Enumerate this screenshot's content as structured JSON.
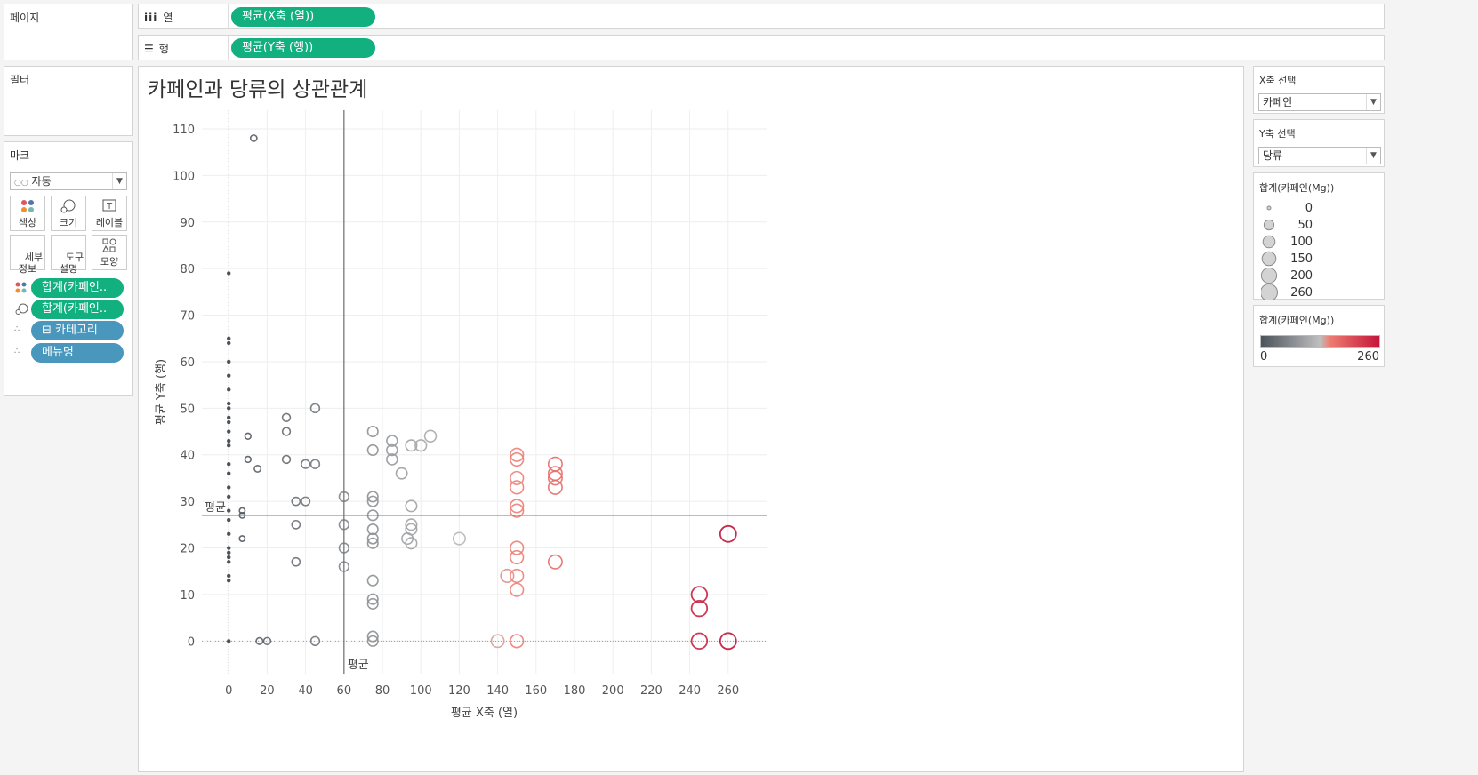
{
  "shelves": {
    "pages_title": "페이지",
    "columns_label": "열",
    "rows_label": "행",
    "columns_pill": "평균(X축 (열))",
    "rows_pill": "평균(Y축 (행))"
  },
  "filters_title": "필터",
  "marks": {
    "title": "마크",
    "type_value": "자동",
    "buttons": [
      "색상",
      "크기",
      "레이블",
      "세부\n정보",
      "도구\n설명",
      "모양"
    ],
    "fields": [
      {
        "label": "합계(카페인..",
        "kind": "color",
        "style": "green"
      },
      {
        "label": "합계(카페인..",
        "kind": "size",
        "style": "green"
      },
      {
        "label": "⊟ 카테고리",
        "kind": "detail",
        "style": "blue"
      },
      {
        "label": "메뉴명",
        "kind": "detail",
        "style": "blue"
      }
    ]
  },
  "params": {
    "x_title": "X축 선택",
    "x_value": "카페인",
    "y_title": "Y축 선택",
    "y_value": "당류"
  },
  "size_legend": {
    "title": "합계(카페인(Mg))",
    "items": [
      "0",
      "50",
      "100",
      "150",
      "200",
      "260"
    ]
  },
  "color_legend": {
    "title": "합계(카페인(Mg))",
    "min": "0",
    "max": "260",
    "colors": [
      "#4b525a",
      "#bfbfbf",
      "#ee7d72",
      "#c3143a"
    ]
  },
  "chart_data": {
    "type": "scatter",
    "title": "카페인과 당류의 상관관계",
    "xlabel": "평균 X축 (열)",
    "ylabel": "평균 Y축 (행)",
    "xlim": [
      -14,
      280
    ],
    "ylim": [
      -7,
      114
    ],
    "xticks": [
      0,
      20,
      40,
      60,
      80,
      100,
      120,
      140,
      160,
      180,
      200,
      220,
      240,
      260
    ],
    "yticks": [
      0,
      10,
      20,
      30,
      40,
      50,
      60,
      70,
      80,
      90,
      100,
      110
    ],
    "ref_lines": {
      "x_avg": 60,
      "y_avg": 27,
      "label": "평균"
    },
    "points": [
      [
        0,
        0
      ],
      [
        0,
        13
      ],
      [
        0,
        14
      ],
      [
        0,
        17
      ],
      [
        0,
        18
      ],
      [
        0,
        19
      ],
      [
        0,
        20
      ],
      [
        0,
        23
      ],
      [
        0,
        26
      ],
      [
        0,
        28
      ],
      [
        0,
        31
      ],
      [
        0,
        33
      ],
      [
        0,
        36
      ],
      [
        0,
        38
      ],
      [
        0,
        42
      ],
      [
        0,
        43
      ],
      [
        0,
        45
      ],
      [
        0,
        47
      ],
      [
        0,
        48
      ],
      [
        0,
        50
      ],
      [
        0,
        51
      ],
      [
        0,
        54
      ],
      [
        0,
        57
      ],
      [
        0,
        60
      ],
      [
        0,
        64
      ],
      [
        0,
        65
      ],
      [
        0,
        79
      ],
      [
        7,
        22
      ],
      [
        7,
        27
      ],
      [
        7,
        28
      ],
      [
        10,
        39
      ],
      [
        10,
        44
      ],
      [
        13,
        108
      ],
      [
        15,
        37
      ],
      [
        16,
        0
      ],
      [
        20,
        0
      ],
      [
        30,
        39
      ],
      [
        30,
        45
      ],
      [
        30,
        48
      ],
      [
        35,
        17
      ],
      [
        35,
        25
      ],
      [
        35,
        30
      ],
      [
        40,
        30
      ],
      [
        40,
        38
      ],
      [
        45,
        0
      ],
      [
        45,
        38
      ],
      [
        45,
        50
      ],
      [
        60,
        16
      ],
      [
        60,
        20
      ],
      [
        60,
        25
      ],
      [
        60,
        31
      ],
      [
        75,
        0
      ],
      [
        75,
        1
      ],
      [
        75,
        8
      ],
      [
        75,
        9
      ],
      [
        75,
        13
      ],
      [
        75,
        21
      ],
      [
        75,
        22
      ],
      [
        75,
        24
      ],
      [
        75,
        27
      ],
      [
        75,
        30
      ],
      [
        75,
        31
      ],
      [
        75,
        41
      ],
      [
        75,
        45
      ],
      [
        85,
        39
      ],
      [
        85,
        41
      ],
      [
        85,
        43
      ],
      [
        90,
        36
      ],
      [
        93,
        22
      ],
      [
        95,
        21
      ],
      [
        95,
        24
      ],
      [
        95,
        25
      ],
      [
        95,
        29
      ],
      [
        95,
        42
      ],
      [
        100,
        42
      ],
      [
        105,
        44
      ],
      [
        120,
        22
      ],
      [
        140,
        0
      ],
      [
        145,
        14
      ],
      [
        150,
        0
      ],
      [
        150,
        11
      ],
      [
        150,
        14
      ],
      [
        150,
        18
      ],
      [
        150,
        20
      ],
      [
        150,
        28
      ],
      [
        150,
        29
      ],
      [
        150,
        33
      ],
      [
        150,
        35
      ],
      [
        150,
        39
      ],
      [
        150,
        40
      ],
      [
        170,
        17
      ],
      [
        170,
        33
      ],
      [
        170,
        35
      ],
      [
        170,
        36
      ],
      [
        170,
        38
      ],
      [
        245,
        0
      ],
      [
        245,
        7
      ],
      [
        245,
        10
      ],
      [
        260,
        0
      ],
      [
        260,
        23
      ]
    ]
  }
}
